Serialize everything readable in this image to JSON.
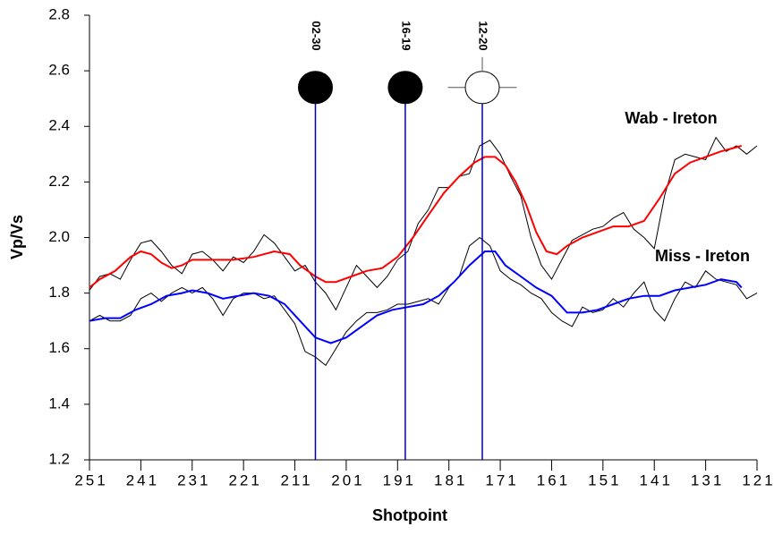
{
  "chart_data": {
    "type": "line",
    "x_label": "Shotpoint",
    "y_label": "Vp/Vs",
    "xlim": [
      251,
      121
    ],
    "ylim": [
      1.2,
      2.8
    ],
    "xticks": [
      251,
      241,
      231,
      221,
      211,
      201,
      191,
      181,
      171,
      161,
      151,
      141,
      131,
      121
    ],
    "yticks": [
      1.2,
      1.4,
      1.6,
      1.8,
      {
        "value": 2,
        "label": "2.0"
      },
      2.2,
      2.4,
      2.6,
      2.8
    ],
    "series": [
      {
        "color": "#000000",
        "x": [
          251,
          249,
          247,
          245,
          243,
          241,
          239,
          237,
          235,
          233,
          231,
          229,
          227,
          225,
          223,
          221,
          219,
          217,
          215,
          213,
          211,
          209,
          207,
          205,
          203,
          201,
          199,
          197,
          195,
          193,
          191,
          189,
          187,
          185,
          183,
          181,
          179,
          177,
          175,
          173,
          171,
          169,
          167,
          165,
          163,
          161,
          159,
          157,
          155,
          153,
          151,
          149,
          147,
          145,
          143,
          141,
          139,
          137,
          135,
          133,
          131,
          129,
          127,
          125,
          123,
          121
        ],
        "values": [
          1.81,
          1.86,
          1.87,
          1.85,
          1.92,
          1.98,
          1.99,
          1.95,
          1.9,
          1.87,
          1.94,
          1.95,
          1.92,
          1.88,
          1.93,
          1.91,
          1.95,
          2.01,
          1.98,
          1.93,
          1.88,
          1.9,
          1.84,
          1.8,
          1.74,
          1.82,
          1.9,
          1.86,
          1.82,
          1.86,
          1.92,
          1.95,
          2.05,
          2.1,
          2.18,
          2.18,
          2.22,
          2.23,
          2.33,
          2.35,
          2.3,
          2.22,
          2.15,
          2.0,
          1.9,
          1.85,
          1.92,
          1.99,
          2.01,
          2.03,
          2.04,
          2.07,
          2.09,
          2.03,
          2.0,
          1.96,
          2.15,
          2.28,
          2.3,
          2.29,
          2.28,
          2.36,
          2.31,
          2.33,
          2.3,
          2.33
        ]
      },
      {
        "name": "Wab - Ireton",
        "color": "#ff0000",
        "x": [
          251,
          249,
          246,
          243,
          241,
          239,
          237,
          235,
          233,
          231,
          227,
          223,
          219,
          215,
          212,
          210,
          207,
          205,
          203,
          200,
          197,
          194,
          191,
          188,
          185,
          182,
          179,
          176,
          174,
          172,
          170,
          168,
          166,
          164,
          162,
          160,
          158,
          155,
          152,
          149,
          146,
          143,
          140,
          137,
          134,
          131,
          128,
          126,
          124
        ],
        "values": [
          1.82,
          1.85,
          1.88,
          1.93,
          1.95,
          1.94,
          1.91,
          1.89,
          1.9,
          1.92,
          1.92,
          1.92,
          1.93,
          1.95,
          1.94,
          1.9,
          1.86,
          1.84,
          1.84,
          1.86,
          1.88,
          1.89,
          1.93,
          2.0,
          2.08,
          2.16,
          2.22,
          2.27,
          2.29,
          2.29,
          2.26,
          2.2,
          2.12,
          2.02,
          1.95,
          1.94,
          1.97,
          2.0,
          2.02,
          2.04,
          2.04,
          2.06,
          2.14,
          2.23,
          2.27,
          2.29,
          2.31,
          2.32,
          2.33
        ]
      },
      {
        "color": "#000000",
        "x": [
          251,
          249,
          247,
          245,
          243,
          241,
          239,
          237,
          235,
          233,
          231,
          229,
          227,
          225,
          223,
          221,
          219,
          217,
          215,
          213,
          211,
          209,
          207,
          205,
          203,
          201,
          199,
          197,
          195,
          193,
          191,
          189,
          187,
          185,
          183,
          181,
          179,
          177,
          175,
          173,
          171,
          169,
          167,
          165,
          163,
          161,
          159,
          157,
          155,
          153,
          151,
          149,
          147,
          145,
          143,
          141,
          139,
          137,
          135,
          133,
          131,
          129,
          127,
          125,
          123,
          121
        ],
        "values": [
          1.7,
          1.72,
          1.7,
          1.7,
          1.72,
          1.78,
          1.8,
          1.77,
          1.8,
          1.82,
          1.8,
          1.82,
          1.78,
          1.72,
          1.78,
          1.8,
          1.8,
          1.78,
          1.79,
          1.74,
          1.69,
          1.59,
          1.57,
          1.54,
          1.6,
          1.66,
          1.7,
          1.73,
          1.73,
          1.74,
          1.76,
          1.76,
          1.77,
          1.78,
          1.76,
          1.82,
          1.86,
          1.97,
          2.0,
          1.97,
          1.88,
          1.85,
          1.83,
          1.8,
          1.78,
          1.73,
          1.7,
          1.68,
          1.75,
          1.73,
          1.74,
          1.78,
          1.75,
          1.8,
          1.84,
          1.74,
          1.7,
          1.78,
          1.84,
          1.82,
          1.88,
          1.85,
          1.84,
          1.83,
          1.78,
          1.8
        ]
      },
      {
        "name": "Miss - Ireton",
        "color": "#0000ff",
        "x": [
          251,
          248,
          245,
          242,
          239,
          236,
          233,
          231,
          228,
          225,
          222,
          219,
          216,
          213,
          210,
          207,
          204,
          201,
          198,
          195,
          192,
          189,
          186,
          183,
          180,
          177,
          174,
          172,
          170,
          167,
          164,
          161,
          158,
          155,
          152,
          149,
          146,
          143,
          140,
          137,
          134,
          131,
          128,
          125,
          124
        ],
        "values": [
          1.7,
          1.71,
          1.71,
          1.74,
          1.76,
          1.79,
          1.8,
          1.81,
          1.8,
          1.78,
          1.79,
          1.8,
          1.79,
          1.76,
          1.7,
          1.64,
          1.62,
          1.64,
          1.68,
          1.72,
          1.74,
          1.75,
          1.76,
          1.79,
          1.84,
          1.9,
          1.95,
          1.95,
          1.9,
          1.86,
          1.82,
          1.79,
          1.73,
          1.73,
          1.74,
          1.76,
          1.78,
          1.79,
          1.79,
          1.81,
          1.82,
          1.83,
          1.85,
          1.84,
          1.82
        ]
      }
    ],
    "markers": [
      {
        "label": "02-30",
        "x": 207,
        "y": 2.54,
        "filled": true
      },
      {
        "label": "16-19",
        "x": 189.5,
        "y": 2.54,
        "filled": true
      },
      {
        "label": "12-20",
        "x": 174.5,
        "y": 2.54,
        "filled": false,
        "xerr": 6.7
      }
    ]
  }
}
